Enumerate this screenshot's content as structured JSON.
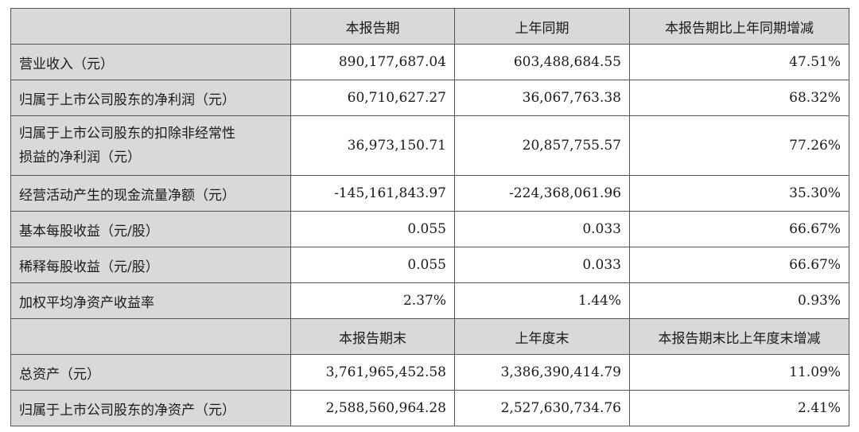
{
  "table": {
    "header1": {
      "c0": "",
      "c1": "本报告期",
      "c2": "上年同期",
      "c3": "本报告期比上年同期增减"
    },
    "rows1": [
      {
        "label": "营业收入（元）",
        "v1": "890,177,687.04",
        "v2": "603,488,684.55",
        "v3": "47.51%"
      },
      {
        "label": "归属于上市公司股东的净利润（元）",
        "v1": "60,710,627.27",
        "v2": "36,067,763.38",
        "v3": "68.32%"
      },
      {
        "label_line1": "归属于上市公司股东的扣除非经常性",
        "label_line2": "损益的净利润（元）",
        "v1": "36,973,150.71",
        "v2": "20,857,755.57",
        "v3": "77.26%"
      },
      {
        "label": "经营活动产生的现金流量净额（元）",
        "v1": "-145,161,843.97",
        "v2": "-224,368,061.96",
        "v3": "35.30%"
      },
      {
        "label": "基本每股收益（元/股）",
        "v1": "0.055",
        "v2": "0.033",
        "v3": "66.67%"
      },
      {
        "label": "稀释每股收益（元/股）",
        "v1": "0.055",
        "v2": "0.033",
        "v3": "66.67%"
      },
      {
        "label": "加权平均净资产收益率",
        "v1": "2.37%",
        "v2": "1.44%",
        "v3": "0.93%"
      }
    ],
    "header2": {
      "c0": "",
      "c1": "本报告期末",
      "c2": "上年度末",
      "c3": "本报告期末比上年度末增减"
    },
    "rows2": [
      {
        "label": "总资产（元）",
        "v1": "3,761,965,452.58",
        "v2": "3,386,390,414.79",
        "v3": "11.09%"
      },
      {
        "label": "归属于上市公司股东的净资产（元）",
        "v1": "2,588,560,964.28",
        "v2": "2,527,630,734.76",
        "v3": "2.41%"
      }
    ]
  }
}
